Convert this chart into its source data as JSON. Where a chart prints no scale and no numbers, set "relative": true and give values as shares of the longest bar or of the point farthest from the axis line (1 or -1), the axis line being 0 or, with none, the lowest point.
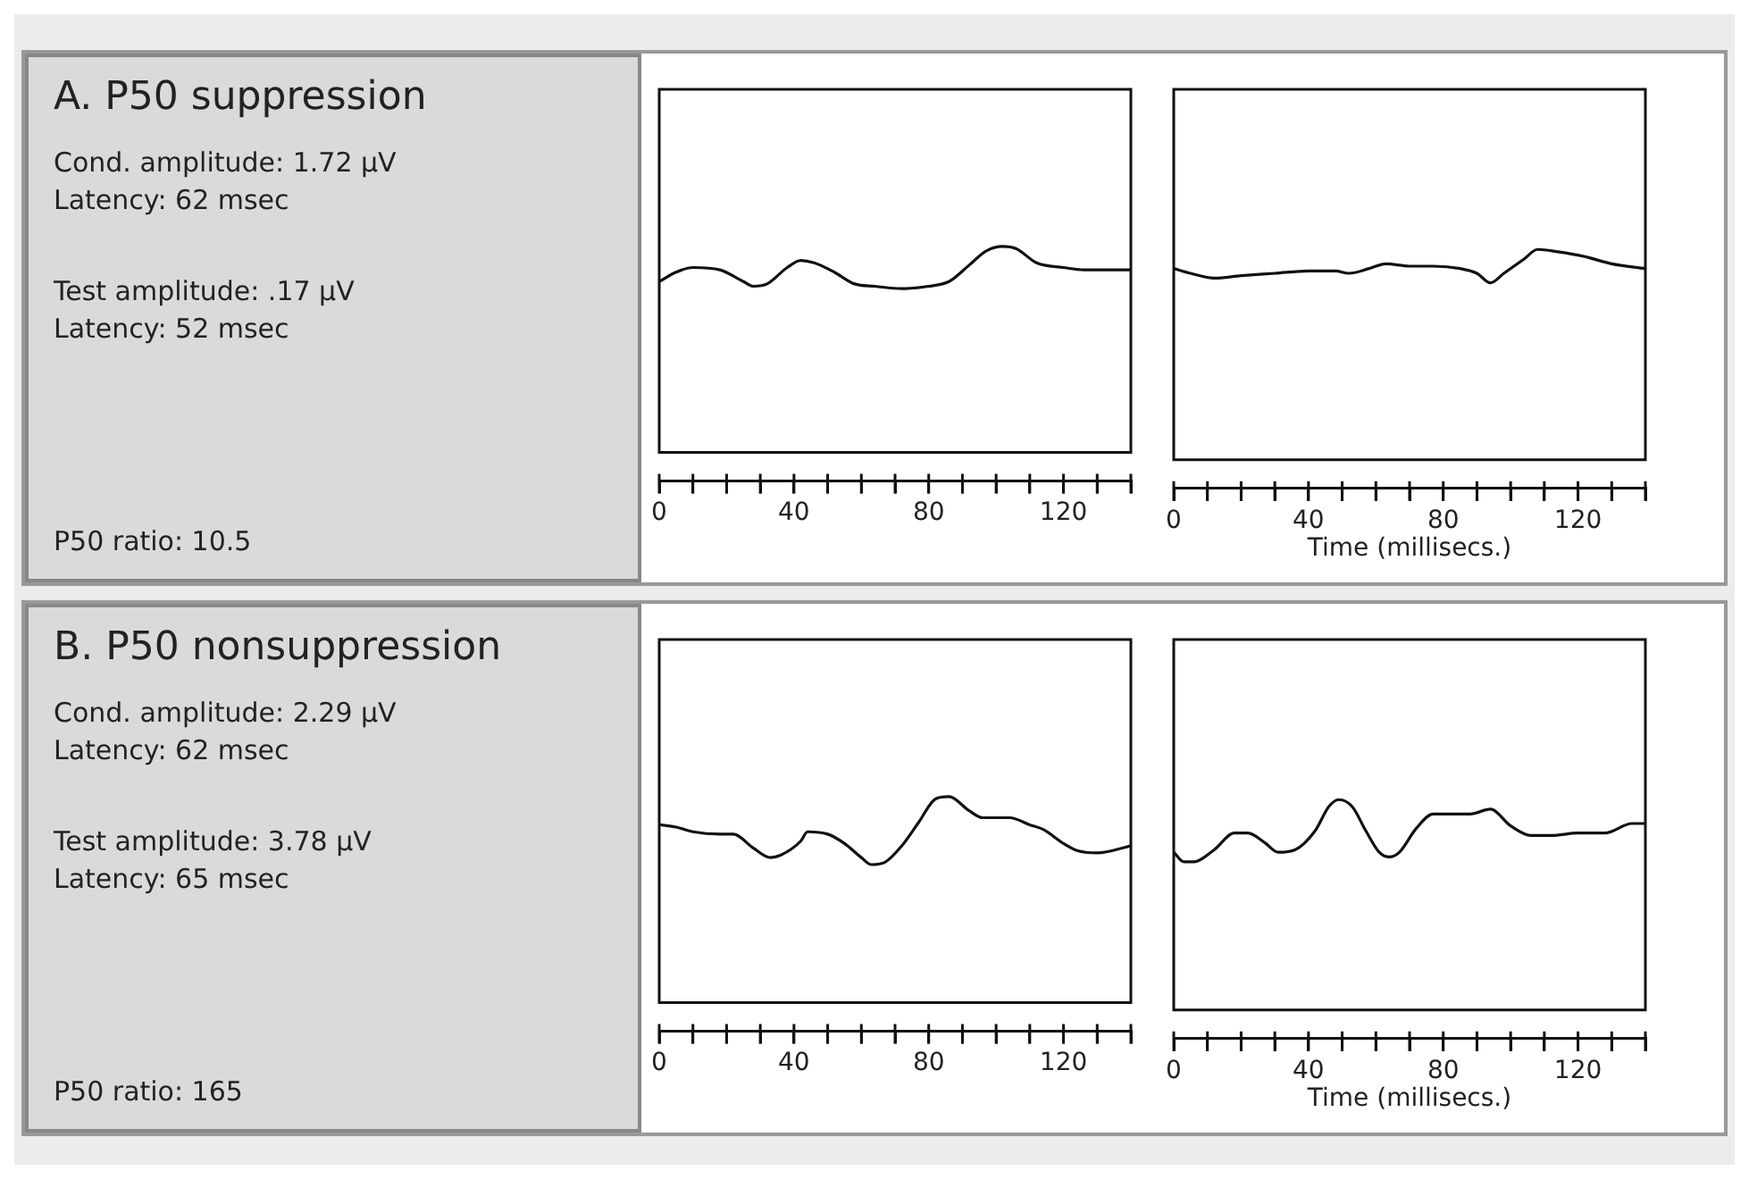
{
  "chart_data": [
    {
      "type": "other",
      "title": "A. P50 suppression",
      "annotations": [
        "Cond. amplitude: 1.72 μV",
        "Latency: 62 msec",
        "Test amplitude: .17 μV",
        "Latency: 52 msec",
        "P50 ratio: 10.5"
      ]
    },
    {
      "type": "line",
      "relative": true,
      "x": [
        0,
        5,
        10,
        18,
        25,
        28,
        32,
        38,
        42,
        46,
        52,
        58,
        64,
        72,
        80,
        86,
        92,
        97,
        102,
        106,
        112,
        120,
        126,
        140
      ],
      "series": [
        {
          "color": "#111111",
          "values": [
            0.85,
            0.89,
            0.91,
            0.9,
            0.85,
            0.83,
            0.84,
            0.91,
            0.94,
            0.93,
            0.89,
            0.84,
            0.83,
            0.82,
            0.83,
            0.85,
            0.92,
            0.98,
            1,
            0.99,
            0.93,
            0.91,
            0.9,
            0.9
          ]
        }
      ],
      "xlim": [
        0,
        140
      ],
      "xticks": [
        0,
        {
          "value": 10,
          "label": null
        },
        {
          "value": 20,
          "label": null
        },
        {
          "value": 30,
          "label": null
        },
        40,
        {
          "value": 50,
          "label": null
        },
        {
          "value": 60,
          "label": null
        },
        {
          "value": 70,
          "label": null
        },
        80,
        {
          "value": 90,
          "label": null
        },
        {
          "value": 100,
          "label": null
        },
        {
          "value": 110,
          "label": null
        },
        120,
        {
          "value": 130,
          "label": null
        },
        {
          "value": 140,
          "label": null
        }
      ],
      "tick_labels": "x",
      "grid": false,
      "legend": false,
      "marker": "none"
    },
    {
      "type": "line",
      "relative": true,
      "xlabel": "Time (millisecs.)",
      "x": [
        0,
        5,
        12,
        20,
        30,
        40,
        48,
        52,
        58,
        63,
        70,
        77,
        85,
        90,
        94,
        98,
        104,
        108,
        114,
        122,
        130,
        140
      ],
      "series": [
        {
          "color": "#111111",
          "values": [
            0.92,
            0.9,
            0.88,
            0.89,
            0.9,
            0.91,
            0.91,
            0.9,
            0.92,
            0.94,
            0.93,
            0.93,
            0.92,
            0.9,
            0.86,
            0.9,
            0.96,
            1,
            0.99,
            0.97,
            0.94,
            0.92
          ]
        }
      ],
      "xlim": [
        0,
        140
      ],
      "xticks": [
        0,
        {
          "value": 10,
          "label": null
        },
        {
          "value": 20,
          "label": null
        },
        {
          "value": 30,
          "label": null
        },
        40,
        {
          "value": 50,
          "label": null
        },
        {
          "value": 60,
          "label": null
        },
        {
          "value": 70,
          "label": null
        },
        80,
        {
          "value": 90,
          "label": null
        },
        {
          "value": 100,
          "label": null
        },
        {
          "value": 110,
          "label": null
        },
        120,
        {
          "value": 130,
          "label": null
        },
        {
          "value": 140,
          "label": null
        }
      ],
      "tick_labels": "x",
      "grid": false,
      "legend": false,
      "marker": "none"
    },
    {
      "type": "other",
      "title": "B. P50 nonsuppression",
      "annotations": [
        "Cond. amplitude: 2.29 μV",
        "Latency: 62 msec",
        "Test amplitude: 3.78 μV",
        "Latency: 65 msec",
        "P50 ratio: 165"
      ]
    },
    {
      "type": "line",
      "relative": true,
      "x": [
        0,
        5,
        10,
        18,
        22,
        28,
        33,
        36,
        42,
        44,
        50,
        55,
        60,
        63,
        67,
        72,
        77,
        82,
        86,
        92,
        96,
        104,
        110,
        114,
        120,
        124,
        130,
        140
      ],
      "series": [
        {
          "color": "#111111",
          "values": [
            0.88,
            0.87,
            0.85,
            0.84,
            0.84,
            0.78,
            0.74,
            0.75,
            0.81,
            0.85,
            0.84,
            0.8,
            0.74,
            0.71,
            0.72,
            0.79,
            0.89,
            0.99,
            1,
            0.94,
            0.91,
            0.91,
            0.88,
            0.86,
            0.8,
            0.77,
            0.76,
            0.79
          ]
        }
      ],
      "xlim": [
        0,
        140
      ],
      "xticks": [
        0,
        {
          "value": 10,
          "label": null
        },
        {
          "value": 20,
          "label": null
        },
        {
          "value": 30,
          "label": null
        },
        40,
        {
          "value": 50,
          "label": null
        },
        {
          "value": 60,
          "label": null
        },
        {
          "value": 70,
          "label": null
        },
        80,
        {
          "value": 90,
          "label": null
        },
        {
          "value": 100,
          "label": null
        },
        {
          "value": 110,
          "label": null
        },
        120,
        {
          "value": 130,
          "label": null
        },
        {
          "value": 140,
          "label": null
        }
      ],
      "tick_labels": "x",
      "grid": false,
      "legend": false,
      "marker": "none"
    },
    {
      "type": "line",
      "relative": true,
      "xlabel": "Time (millisecs.)",
      "x": [
        0,
        3,
        6,
        12,
        18,
        22,
        27,
        31,
        36,
        42,
        46,
        49,
        53,
        57,
        61,
        64,
        67,
        72,
        77,
        82,
        88,
        94,
        100,
        106,
        112,
        120,
        128,
        136,
        140
      ],
      "series": [
        {
          "color": "#111111",
          "values": [
            0.78,
            0.74,
            0.74,
            0.79,
            0.86,
            0.86,
            0.82,
            0.78,
            0.79,
            0.87,
            0.97,
            1,
            0.97,
            0.87,
            0.78,
            0.76,
            0.78,
            0.88,
            0.94,
            0.94,
            0.94,
            0.96,
            0.89,
            0.85,
            0.85,
            0.86,
            0.86,
            0.9,
            0.9
          ]
        }
      ],
      "xlim": [
        0,
        140
      ],
      "xticks": [
        0,
        {
          "value": 10,
          "label": null
        },
        {
          "value": 20,
          "label": null
        },
        {
          "value": 30,
          "label": null
        },
        40,
        {
          "value": 50,
          "label": null
        },
        {
          "value": 60,
          "label": null
        },
        {
          "value": 70,
          "label": null
        },
        80,
        {
          "value": 90,
          "label": null
        },
        {
          "value": 100,
          "label": null
        },
        {
          "value": 110,
          "label": null
        },
        120,
        {
          "value": 130,
          "label": null
        },
        {
          "value": 140,
          "label": null
        }
      ],
      "tick_labels": "x",
      "grid": false,
      "legend": false,
      "marker": "none"
    }
  ]
}
